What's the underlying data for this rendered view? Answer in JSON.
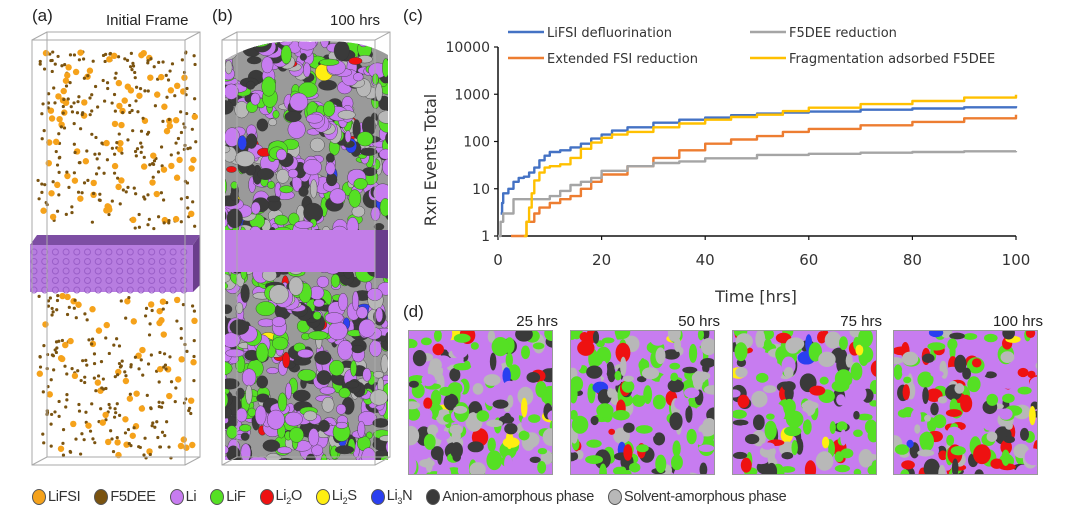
{
  "panels": {
    "a": {
      "label": "(a)",
      "title": "Initial Frame"
    },
    "b": {
      "label": "(b)",
      "title": "100 hrs"
    },
    "c": {
      "label": "(c)"
    },
    "d": {
      "label": "(d)",
      "snapshots": [
        "25 hrs",
        "50 hrs",
        "75 hrs",
        "100 hrs"
      ]
    }
  },
  "colors": {
    "LiFSI": "#f5a21b",
    "F5DEE": "#7a5310",
    "Li": "#c77cf0",
    "LiF": "#55e024",
    "Li2O": "#ee1111",
    "Li2S": "#ffee11",
    "Li3N": "#2a3ff0",
    "anion": "#3a3a3a",
    "solvent": "#b8b8b8",
    "slab_side": "#6a3d8c"
  },
  "species_legend": [
    {
      "key": "LiFSI",
      "label": "LiFSI",
      "sub": "",
      "rest": ""
    },
    {
      "key": "F5DEE",
      "label": "F5DEE",
      "sub": "",
      "rest": ""
    },
    {
      "key": "Li",
      "label": "Li",
      "sub": "",
      "rest": ""
    },
    {
      "key": "LiF",
      "label": "LiF",
      "sub": "",
      "rest": ""
    },
    {
      "key": "Li2O",
      "label": "Li",
      "sub": "2",
      "rest": "O"
    },
    {
      "key": "Li2S",
      "label": "Li",
      "sub": "2",
      "rest": "S"
    },
    {
      "key": "Li3N",
      "label": "Li",
      "sub": "3",
      "rest": "N"
    },
    {
      "key": "anion",
      "label": "Anion-amorphous phase",
      "sub": "",
      "rest": ""
    },
    {
      "key": "solvent",
      "label": "Solvent-amorphous phase",
      "sub": "",
      "rest": ""
    }
  ],
  "chart_data": {
    "type": "line",
    "title": "",
    "xlabel": "Time [hrs]",
    "ylabel": "Rxn Events Total",
    "xlim": [
      0,
      100
    ],
    "ylim": [
      1,
      10000
    ],
    "yscale": "log",
    "xticks": [
      0,
      20,
      40,
      60,
      80,
      100
    ],
    "yticks": [
      1,
      10,
      100,
      1000,
      10000
    ],
    "ytick_labels": [
      "1",
      "10",
      "100",
      "1000",
      "10000"
    ],
    "grid": false,
    "legend_position": "top",
    "series": [
      {
        "name": "LiFSI defluorination",
        "color": "#4472c4",
        "x": [
          0.5,
          0.8,
          1,
          2,
          3,
          4,
          5,
          6,
          7,
          8,
          9,
          10,
          12,
          14,
          16,
          18,
          20,
          22,
          25,
          30,
          35,
          40,
          45,
          50,
          55,
          60,
          70,
          80,
          90,
          100
        ],
        "y": [
          3,
          5,
          8,
          10,
          14,
          17,
          18,
          22,
          28,
          40,
          50,
          60,
          65,
          75,
          90,
          115,
          140,
          170,
          200,
          250,
          290,
          320,
          360,
          390,
          410,
          430,
          470,
          500,
          530,
          560
        ]
      },
      {
        "name": "Extended FSI reduction",
        "color": "#ed7d31",
        "x": [
          2.5,
          5,
          5.5,
          6,
          7,
          8,
          10,
          12,
          14,
          16,
          18,
          20,
          25,
          30,
          35,
          40,
          45,
          50,
          55,
          60,
          70,
          80,
          90,
          100
        ],
        "y": [
          1,
          1,
          2,
          2,
          3,
          4,
          5,
          6,
          7,
          10,
          14,
          20,
          30,
          45,
          65,
          90,
          110,
          130,
          160,
          185,
          220,
          260,
          310,
          370
        ]
      },
      {
        "name": "F5DEE reduction",
        "color": "#a5a5a5",
        "x": [
          0,
          0.5,
          1,
          2,
          3,
          5,
          8,
          10,
          12,
          14,
          16,
          18,
          20,
          25,
          30,
          35,
          40,
          50,
          60,
          70,
          80,
          90,
          100
        ],
        "y": [
          1,
          2,
          3,
          3,
          6,
          6,
          6,
          7,
          9,
          12,
          14,
          17,
          24,
          30,
          35,
          38,
          44,
          52,
          55,
          58,
          60,
          62,
          63
        ]
      },
      {
        "name": "Fragmentation adsorbed F5DEE",
        "color": "#ffc000",
        "x": [
          5,
          5.5,
          6,
          6.5,
          7,
          8,
          9,
          10,
          12,
          14,
          16,
          18,
          20,
          22,
          25,
          30,
          35,
          40,
          45,
          50,
          55,
          60,
          70,
          80,
          90,
          100
        ],
        "y": [
          1,
          2,
          4,
          8,
          15,
          22,
          28,
          30,
          33,
          45,
          70,
          95,
          120,
          140,
          160,
          200,
          240,
          290,
          330,
          370,
          440,
          520,
          620,
          720,
          850,
          980
        ]
      }
    ]
  }
}
